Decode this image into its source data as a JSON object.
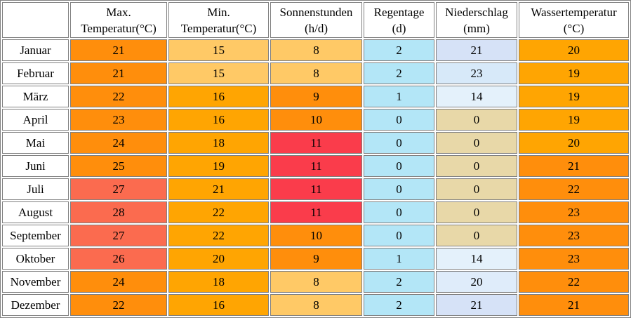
{
  "palette": {
    "hot_salmon": "#FB6B4F",
    "dark_orange": "#FF8E0C",
    "orange": "#FFA502",
    "light_amber": "#FFC966",
    "red": "#FA3C4B",
    "light_cyan": "#B3E6F7",
    "tan": "#E8D8A8",
    "pale_blue_14": "#E4F1FB",
    "pale_blue_20": "#DFECFA",
    "pale_blue_21": "#D6E2F7",
    "pale_blue_23": "#D7E9F9"
  },
  "table": {
    "columns": [
      {
        "name": "month",
        "line1": "",
        "line2": ""
      },
      {
        "name": "max-temperatur",
        "line1": "Max.",
        "line2": "Temperatur(°C)"
      },
      {
        "name": "min-temperatur",
        "line1": "Min.",
        "line2": "Temperatur(°C)"
      },
      {
        "name": "sonnenstunden",
        "line1": "Sonnenstunden",
        "line2": "(h/d)"
      },
      {
        "name": "regentage",
        "line1": "Regentage",
        "line2": "(d)"
      },
      {
        "name": "niederschlag",
        "line1": "Niederschlag",
        "line2": "(mm)"
      },
      {
        "name": "wassertemperatur",
        "line1": "Wassertemperatur",
        "line2": "(°C)"
      }
    ],
    "rows": [
      {
        "month": "Januar",
        "values": [
          "21",
          "15",
          "8",
          "2",
          "21",
          "20"
        ],
        "colors": [
          "dark_orange",
          "light_amber",
          "light_amber",
          "light_cyan",
          "pale_blue_21",
          "orange"
        ]
      },
      {
        "month": "Februar",
        "values": [
          "21",
          "15",
          "8",
          "2",
          "23",
          "19"
        ],
        "colors": [
          "dark_orange",
          "light_amber",
          "light_amber",
          "light_cyan",
          "pale_blue_23",
          "orange"
        ]
      },
      {
        "month": "März",
        "values": [
          "22",
          "16",
          "9",
          "1",
          "14",
          "19"
        ],
        "colors": [
          "dark_orange",
          "orange",
          "dark_orange",
          "light_cyan",
          "pale_blue_14",
          "orange"
        ]
      },
      {
        "month": "April",
        "values": [
          "23",
          "16",
          "10",
          "0",
          "0",
          "19"
        ],
        "colors": [
          "dark_orange",
          "orange",
          "dark_orange",
          "light_cyan",
          "tan",
          "orange"
        ]
      },
      {
        "month": "Mai",
        "values": [
          "24",
          "18",
          "11",
          "0",
          "0",
          "20"
        ],
        "colors": [
          "dark_orange",
          "orange",
          "red",
          "light_cyan",
          "tan",
          "orange"
        ]
      },
      {
        "month": "Juni",
        "values": [
          "25",
          "19",
          "11",
          "0",
          "0",
          "21"
        ],
        "colors": [
          "dark_orange",
          "orange",
          "red",
          "light_cyan",
          "tan",
          "dark_orange"
        ]
      },
      {
        "month": "Juli",
        "values": [
          "27",
          "21",
          "11",
          "0",
          "0",
          "22"
        ],
        "colors": [
          "hot_salmon",
          "orange",
          "red",
          "light_cyan",
          "tan",
          "dark_orange"
        ]
      },
      {
        "month": "August",
        "values": [
          "28",
          "22",
          "11",
          "0",
          "0",
          "23"
        ],
        "colors": [
          "hot_salmon",
          "orange",
          "red",
          "light_cyan",
          "tan",
          "dark_orange"
        ]
      },
      {
        "month": "September",
        "values": [
          "27",
          "22",
          "10",
          "0",
          "0",
          "23"
        ],
        "colors": [
          "hot_salmon",
          "orange",
          "dark_orange",
          "light_cyan",
          "tan",
          "dark_orange"
        ]
      },
      {
        "month": "Oktober",
        "values": [
          "26",
          "20",
          "9",
          "1",
          "14",
          "23"
        ],
        "colors": [
          "hot_salmon",
          "orange",
          "dark_orange",
          "light_cyan",
          "pale_blue_14",
          "dark_orange"
        ]
      },
      {
        "month": "November",
        "values": [
          "24",
          "18",
          "8",
          "2",
          "20",
          "22"
        ],
        "colors": [
          "dark_orange",
          "orange",
          "light_amber",
          "light_cyan",
          "pale_blue_20",
          "dark_orange"
        ]
      },
      {
        "month": "Dezember",
        "values": [
          "22",
          "16",
          "8",
          "2",
          "21",
          "21"
        ],
        "colors": [
          "dark_orange",
          "orange",
          "light_amber",
          "light_cyan",
          "pale_blue_21",
          "dark_orange"
        ]
      }
    ]
  },
  "chart_data": {
    "type": "table",
    "columns": [
      "",
      "Max. Temperatur(°C)",
      "Min. Temperatur(°C)",
      "Sonnenstunden (h/d)",
      "Regentage (d)",
      "Niederschlag (mm)",
      "Wassertemperatur (°C)"
    ],
    "rows": [
      [
        "Januar",
        21,
        15,
        8,
        2,
        21,
        20
      ],
      [
        "Februar",
        21,
        15,
        8,
        2,
        23,
        19
      ],
      [
        "März",
        22,
        16,
        9,
        1,
        14,
        19
      ],
      [
        "April",
        23,
        16,
        10,
        0,
        0,
        19
      ],
      [
        "Mai",
        24,
        18,
        11,
        0,
        0,
        20
      ],
      [
        "Juni",
        25,
        19,
        11,
        0,
        0,
        21
      ],
      [
        "Juli",
        27,
        21,
        11,
        0,
        0,
        22
      ],
      [
        "August",
        28,
        22,
        11,
        0,
        0,
        23
      ],
      [
        "September",
        27,
        22,
        10,
        0,
        0,
        23
      ],
      [
        "Oktober",
        26,
        20,
        9,
        1,
        14,
        23
      ],
      [
        "November",
        24,
        18,
        8,
        2,
        20,
        22
      ],
      [
        "Dezember",
        22,
        16,
        8,
        2,
        21,
        21
      ]
    ]
  }
}
